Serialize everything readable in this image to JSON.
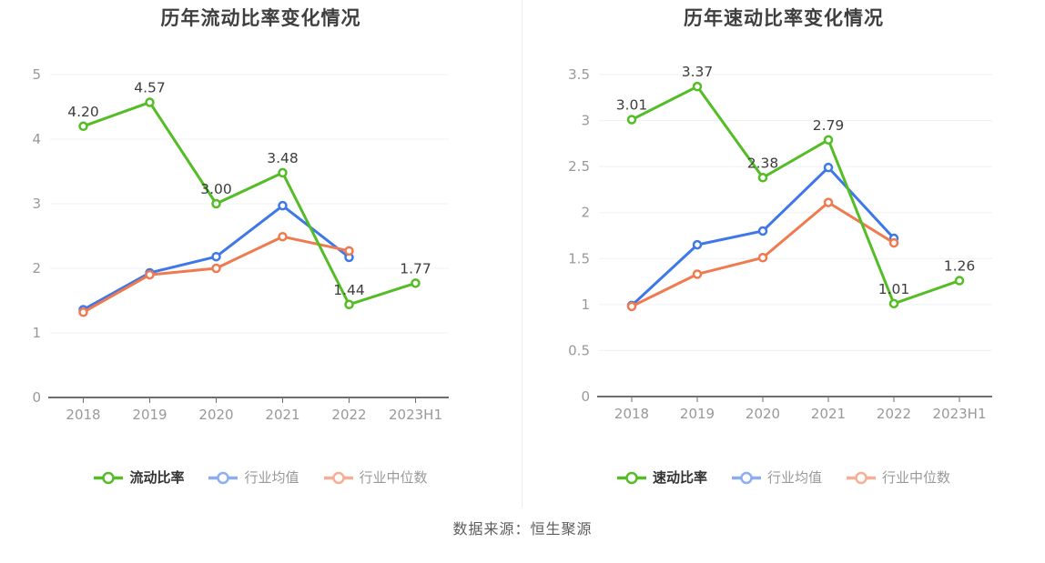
{
  "footer": {
    "source_label": "数据来源：恒生聚源"
  },
  "colors": {
    "main_green": "#54bc25",
    "industry_avg_blue": "#3e77e8",
    "industry_median_orange": "#f07a50",
    "legend_avg_blue": "#8cacf3",
    "legend_median_orange": "#f7ae94",
    "value_label": "#3d3d3d",
    "axis_label": "#999999",
    "axis_line": "#6e6e6e",
    "grid_line": "#edf0f5"
  },
  "chart_data": [
    {
      "type": "line",
      "title": "历年流动比率变化情况",
      "categories": [
        "2018",
        "2019",
        "2020",
        "2021",
        "2022",
        "2023H1"
      ],
      "series": [
        {
          "name": "流动比率",
          "values": [
            4.2,
            4.57,
            3.0,
            3.48,
            1.44,
            1.77
          ],
          "color_key": "main_green",
          "legend_color_key": "main_green",
          "show_labels": true
        },
        {
          "name": "行业均值",
          "values": [
            1.36,
            1.93,
            2.18,
            2.97,
            2.17,
            null
          ],
          "color_key": "industry_avg_blue",
          "legend_color_key": "legend_avg_blue",
          "show_labels": false
        },
        {
          "name": "行业中位数",
          "values": [
            1.32,
            1.9,
            2.0,
            2.49,
            2.27,
            null
          ],
          "color_key": "industry_median_orange",
          "legend_color_key": "legend_median_orange",
          "show_labels": false
        }
      ],
      "ylim": [
        0,
        5
      ],
      "ytick_step": 1,
      "grid": true,
      "legend_position": "bottom"
    },
    {
      "type": "line",
      "title": "历年速动比率变化情况",
      "categories": [
        "2018",
        "2019",
        "2020",
        "2021",
        "2022",
        "2023H1"
      ],
      "series": [
        {
          "name": "速动比率",
          "values": [
            3.01,
            3.37,
            2.38,
            2.79,
            1.01,
            1.26
          ],
          "color_key": "main_green",
          "legend_color_key": "main_green",
          "show_labels": true
        },
        {
          "name": "行业均值",
          "values": [
            0.99,
            1.65,
            1.8,
            2.49,
            1.72,
            null
          ],
          "color_key": "industry_avg_blue",
          "legend_color_key": "legend_avg_blue",
          "show_labels": false
        },
        {
          "name": "行业中位数",
          "values": [
            0.98,
            1.33,
            1.51,
            2.11,
            1.67,
            null
          ],
          "color_key": "industry_median_orange",
          "legend_color_key": "legend_median_orange",
          "show_labels": false
        }
      ],
      "ylim": [
        0,
        3.5
      ],
      "ytick_step": 0.5,
      "grid": true,
      "legend_position": "bottom"
    }
  ]
}
